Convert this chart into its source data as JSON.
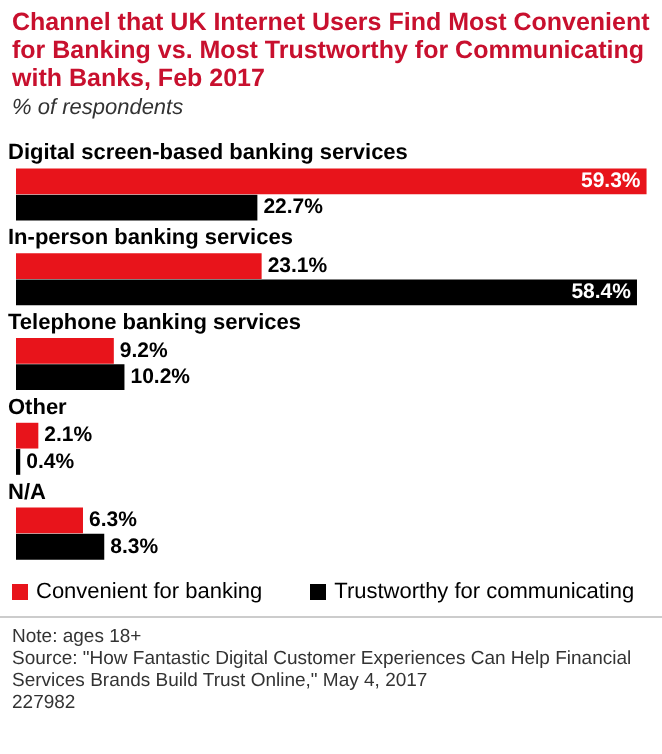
{
  "chart_data": {
    "type": "bar",
    "orientation": "horizontal",
    "title": "Channel that UK Internet Users Find Most Convenient for Banking vs. Most Trustworthy for Communicating with Banks, Feb 2017",
    "subtitle": "% of respondents",
    "categories": [
      "Digital screen-based banking services",
      "In-person banking services",
      "Telephone banking services",
      "Other",
      "N/A"
    ],
    "series": [
      {
        "name": "Convenient for banking",
        "color": "#e8141b",
        "values": [
          59.3,
          23.1,
          9.2,
          2.1,
          6.3
        ],
        "value_labels": [
          "59.3%",
          "23.1%",
          "9.2%",
          "2.1%",
          "6.3%"
        ]
      },
      {
        "name": "Trustworthy for communicating",
        "color": "#000000",
        "values": [
          22.7,
          58.4,
          10.2,
          0.4,
          8.3
        ],
        "value_labels": [
          "22.7%",
          "58.4%",
          "10.2%",
          "0.4%",
          "8.3%"
        ]
      }
    ],
    "legend": "bottom left",
    "annotations": [
      "Note: ages 18+",
      "Source: \"How Fantastic Digital Customer Experiences Can Help Financial Services Brands Build Trust Online,\" May 4, 2017",
      "227982"
    ]
  }
}
